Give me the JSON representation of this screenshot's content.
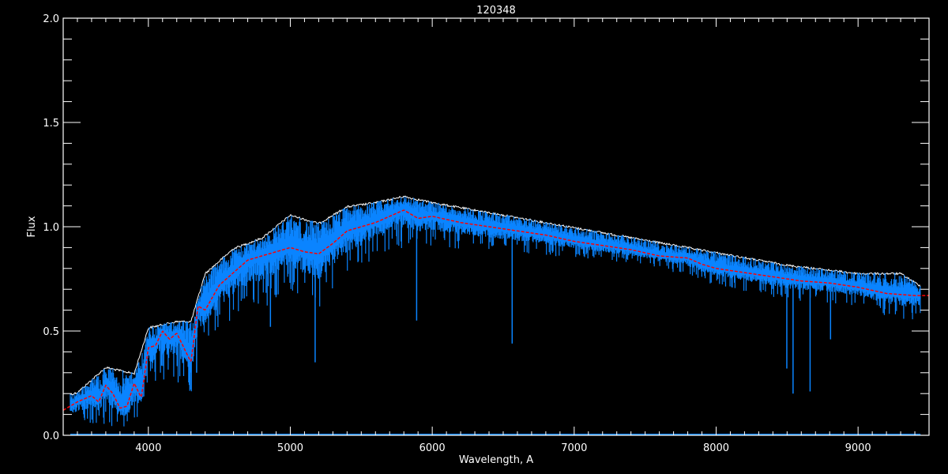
{
  "chart_data": {
    "type": "line",
    "title": "120348",
    "xlabel": "Wavelength, A",
    "ylabel": "Flux",
    "xlim": [
      3400,
      9500
    ],
    "ylim": [
      0.0,
      2.0
    ],
    "xticks": [
      "4000",
      "5000",
      "6000",
      "7000",
      "8000",
      "9000"
    ],
    "yticks": [
      "0.0",
      "0.5",
      "1.0",
      "1.5",
      "2.0"
    ],
    "grid": false,
    "background": "#000000",
    "series": [
      {
        "color": "#0a84ff",
        "style": "observed spectrum band",
        "wavelength": [
          3450,
          3500,
          3700,
          3900,
          4000,
          4200,
          4300,
          4400,
          4600,
          4800,
          5000,
          5200,
          5400,
          5600,
          5800,
          6000,
          6500,
          7000,
          7500,
          8000,
          8500,
          9000,
          9300,
          9440
        ],
        "upper": [
          0.2,
          0.21,
          0.33,
          0.3,
          0.52,
          0.55,
          0.55,
          0.78,
          0.9,
          0.95,
          1.06,
          1.02,
          1.1,
          1.12,
          1.15,
          1.12,
          1.06,
          1.0,
          0.94,
          0.88,
          0.82,
          0.78,
          0.78,
          0.72
        ],
        "lower": [
          0.05,
          0.06,
          0.05,
          0.02,
          0.25,
          0.25,
          0.2,
          0.45,
          0.55,
          0.6,
          0.7,
          0.6,
          0.75,
          0.85,
          0.9,
          0.9,
          0.88,
          0.85,
          0.82,
          0.72,
          0.65,
          0.62,
          0.55,
          0.55
        ],
        "absorption_lines": [
          {
            "wavelength": 5175,
            "flux": 0.35
          },
          {
            "wavelength": 5890,
            "flux": 0.55
          },
          {
            "wavelength": 6563,
            "flux": 0.44
          },
          {
            "wavelength": 8498,
            "flux": 0.32
          },
          {
            "wavelength": 8542,
            "flux": 0.2
          },
          {
            "wavelength": 8662,
            "flux": 0.21
          },
          {
            "wavelength": 8806,
            "flux": 0.46
          },
          {
            "wavelength": 4860,
            "flux": 0.52
          },
          {
            "wavelength": 4340,
            "flux": 0.3
          }
        ]
      },
      {
        "color": "#ff0000",
        "style": "dashed model",
        "x": [
          3400,
          3500,
          3600,
          3650,
          3700,
          3750,
          3800,
          3850,
          3900,
          3950,
          4000,
          4050,
          4100,
          4150,
          4200,
          4250,
          4300,
          4350,
          4400,
          4500,
          4600,
          4700,
          4800,
          4900,
          5000,
          5100,
          5200,
          5300,
          5400,
          5500,
          5600,
          5700,
          5800,
          5900,
          6000,
          6200,
          6400,
          6600,
          6800,
          7000,
          7200,
          7400,
          7600,
          7800,
          7900,
          8000,
          8200,
          8400,
          8600,
          8800,
          9000,
          9200,
          9400,
          9500
        ],
        "y": [
          0.12,
          0.16,
          0.19,
          0.16,
          0.24,
          0.2,
          0.13,
          0.14,
          0.25,
          0.18,
          0.42,
          0.43,
          0.5,
          0.46,
          0.49,
          0.42,
          0.35,
          0.62,
          0.6,
          0.72,
          0.78,
          0.84,
          0.86,
          0.88,
          0.9,
          0.88,
          0.87,
          0.92,
          0.98,
          1.0,
          1.02,
          1.05,
          1.08,
          1.04,
          1.05,
          1.02,
          1.0,
          0.98,
          0.96,
          0.93,
          0.91,
          0.89,
          0.86,
          0.85,
          0.82,
          0.8,
          0.78,
          0.76,
          0.74,
          0.73,
          0.71,
          0.68,
          0.67,
          0.67
        ]
      }
    ]
  }
}
